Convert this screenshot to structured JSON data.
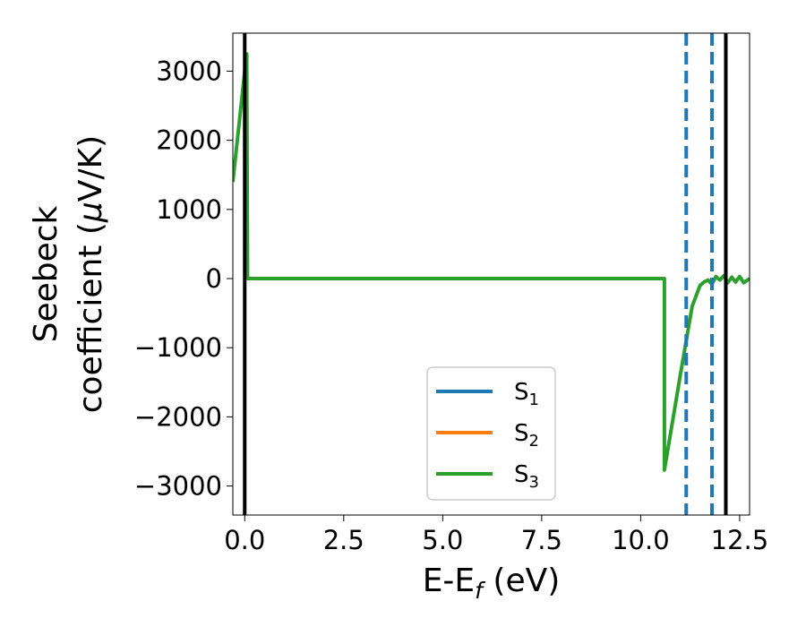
{
  "chart_data": {
    "type": "line",
    "title": "",
    "xlabel": {
      "main": "E-E",
      "sub": "f",
      "unit": " (eV)"
    },
    "ylabel": {
      "line1": "Seebeck",
      "line2": "coefficient  (",
      "mu": "μ",
      "unit": "V/K)"
    },
    "xlim": [
      -0.3,
      12.75
    ],
    "ylim": [
      -3420,
      3550
    ],
    "xticks": [
      0.0,
      2.5,
      5.0,
      7.5,
      10.0,
      12.5
    ],
    "xtick_labels": [
      "0.0",
      "2.5",
      "5.0",
      "7.5",
      "10.0",
      "12.5"
    ],
    "yticks": [
      -3000,
      -2000,
      -1000,
      0,
      1000,
      2000,
      3000
    ],
    "ytick_labels": [
      "−3000",
      "−2000",
      "−1000",
      "0",
      "1000",
      "2000",
      "3000"
    ],
    "grid": false,
    "legend_position": "lower-center",
    "vlines_solid": [
      0.0,
      12.15
    ],
    "vlines_dashed": [
      11.15,
      11.8
    ],
    "colors": {
      "S1": "#1f77b4",
      "S2": "#ff7f0e",
      "S3": "#2ca02c",
      "vline": "#000000",
      "dashed": "#1f77b4"
    },
    "series": [
      {
        "name": "S",
        "sub": "1",
        "color": "#1f77b4",
        "x": [],
        "y": []
      },
      {
        "name": "S",
        "sub": "2",
        "color": "#ff7f0e",
        "x": [],
        "y": []
      },
      {
        "name": "S",
        "sub": "3",
        "color": "#2ca02c",
        "x": [
          -0.3,
          0.0,
          0.05,
          0.07,
          10.6,
          10.6,
          11.0,
          11.3,
          11.5,
          11.6,
          11.7,
          11.8,
          11.9,
          12.0,
          12.1,
          12.2,
          12.3,
          12.4,
          12.5,
          12.6,
          12.75
        ],
        "y": [
          1400,
          3000,
          3250,
          0,
          0,
          -2770,
          -1400,
          -400,
          -100,
          -50,
          -20,
          -80,
          30,
          -20,
          40,
          -60,
          20,
          -50,
          30,
          -60,
          0
        ]
      }
    ]
  }
}
